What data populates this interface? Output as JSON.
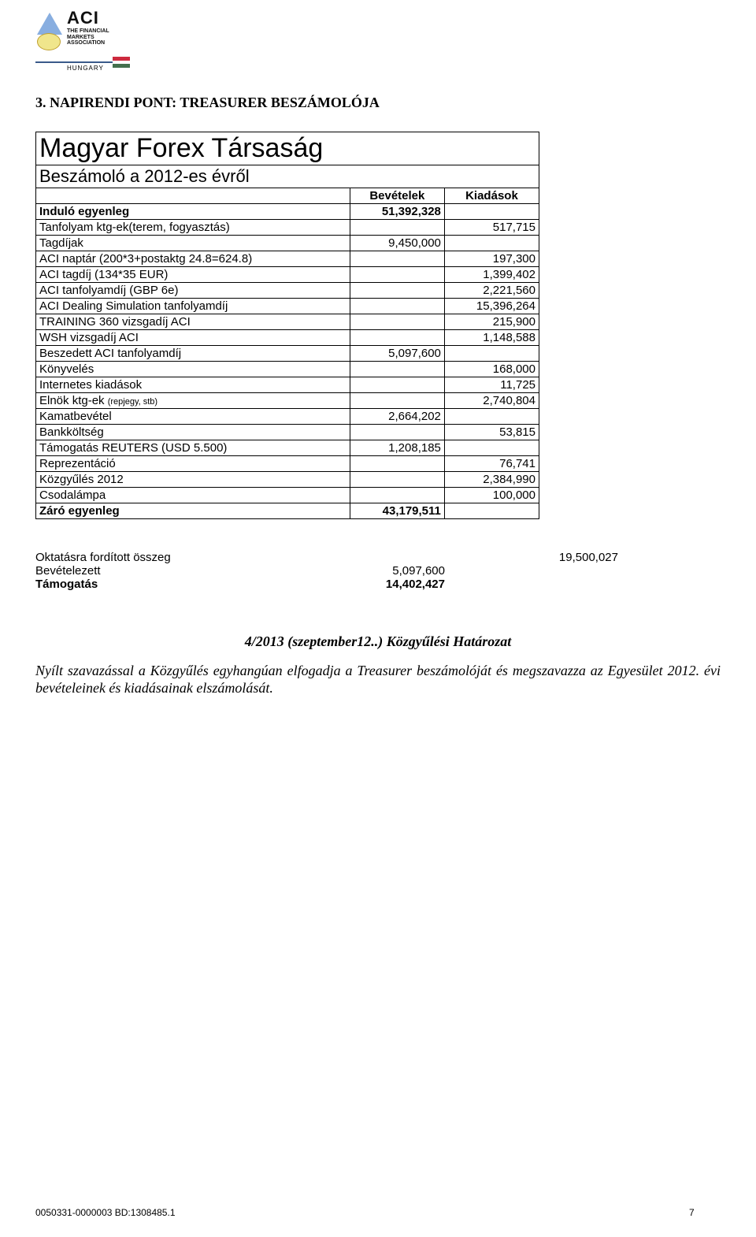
{
  "logo": {
    "aci": "ACI",
    "sub1": "THE FINANCIAL",
    "sub2": "MARKETS",
    "sub3": "ASSOCIATION",
    "hungary": "HUNGARY"
  },
  "section_title": "3.     NAPIRENDI PONT: TREASURER BESZÁMOLÓJA",
  "table": {
    "title": "Magyar Forex Társaság",
    "subtitle": "Beszámoló a 2012-es évről",
    "header_rev": "Bevételek",
    "header_exp": "Kiadások",
    "rows": [
      {
        "desc": "Induló egyenleg",
        "rev": "51,392,328",
        "exp": "",
        "bold": true
      },
      {
        "desc": "Tanfolyam ktg-ek(terem, fogyasztás)",
        "rev": "",
        "exp": "517,715"
      },
      {
        "desc": "Tagdíjak",
        "rev": "9,450,000",
        "exp": ""
      },
      {
        "desc": "ACI naptár (200*3+postaktg 24.8=624.8)",
        "rev": "",
        "exp": "197,300"
      },
      {
        "desc": "ACI tagdíj (134*35 EUR)",
        "rev": "",
        "exp": "1,399,402"
      },
      {
        "desc": "ACI tanfolyamdíj (GBP 6e)",
        "rev": "",
        "exp": "2,221,560"
      },
      {
        "desc": "ACI Dealing Simulation tanfolyamdíj",
        "rev": "",
        "exp": "15,396,264"
      },
      {
        "desc": "TRAINING 360 vizsgadíj  ACI",
        "rev": "",
        "exp": "215,900"
      },
      {
        "desc": "WSH vizsgadíj  ACI",
        "rev": "",
        "exp": "1,148,588"
      },
      {
        "desc": "Beszedett ACI tanfolyamdíj",
        "rev": "5,097,600",
        "exp": ""
      },
      {
        "desc": "Könyvelés",
        "rev": "",
        "exp": "168,000"
      },
      {
        "desc": "Internetes kiadások",
        "rev": "",
        "exp": "11,725"
      },
      {
        "desc": "Elnök ktg-ek (repjegy, stb)",
        "rev": "",
        "exp": "2,740,804",
        "smallnote": true
      },
      {
        "desc": "Kamatbevétel",
        "rev": "2,664,202",
        "exp": ""
      },
      {
        "desc": "Bankköltség",
        "rev": "",
        "exp": "53,815"
      },
      {
        "desc": "Támogatás REUTERS (USD 5.500)",
        "rev": "1,208,185",
        "exp": ""
      },
      {
        "desc": "Reprezentáció",
        "rev": "",
        "exp": "76,741"
      },
      {
        "desc": "Közgyűlés 2012",
        "rev": "",
        "exp": "2,384,990"
      },
      {
        "desc": "Csodalámpa",
        "rev": "",
        "exp": "100,000"
      },
      {
        "desc": "Záró egyenleg",
        "rev": "43,179,511",
        "exp": "",
        "bold": true
      }
    ]
  },
  "summary": {
    "rows": [
      {
        "label": "Oktatásra fordított összeg",
        "val": "19,500,027",
        "bold": false
      },
      {
        "label": "Bevételezett",
        "val": "5,097,600",
        "bold": false,
        "valcol": 1
      },
      {
        "label": "Támogatás",
        "val": "14,402,427",
        "bold": true,
        "valcol": 1
      }
    ]
  },
  "resolution": {
    "title": "4/2013 (szeptember12..) Közgyűlési Határozat",
    "body": "Nyílt szavazással a Közgyűlés egyhangúan elfogadja a Treasurer beszámolóját és megszavazza az Egyesület 2012. évi bevételeinek és kiadásainak elszámolását."
  },
  "footer": {
    "left": "0050331-0000003 BD:1308485.1",
    "page": "7"
  },
  "colors": {
    "text": "#000000",
    "logo_blue": "#3a5a8a",
    "logo_tri": "#88aee0",
    "logo_globe": "#f0e68c"
  }
}
